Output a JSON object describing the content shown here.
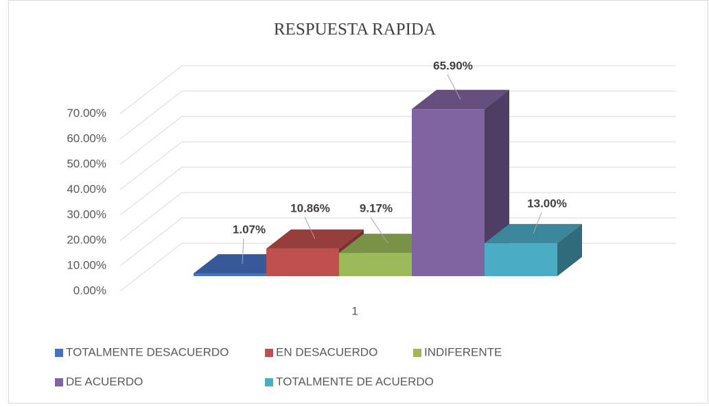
{
  "chart_data": {
    "type": "bar3d",
    "title": "RESPUESTA RAPIDA",
    "categories": [
      "1"
    ],
    "series": [
      {
        "name": "TOTALMENTE DESACUERDO",
        "color": "#4472c4",
        "values": [
          1.07
        ],
        "value_labels": [
          "1.07%"
        ]
      },
      {
        "name": "EN DESACUERDO",
        "color": "#c0504d",
        "values": [
          10.86
        ],
        "value_labels": [
          "10.86%"
        ]
      },
      {
        "name": "INDIFERENTE",
        "color": "#9bbb59",
        "values": [
          9.17
        ],
        "value_labels": [
          "9.17%"
        ]
      },
      {
        "name": "DE ACUERDO",
        "color": "#8064a2",
        "values": [
          65.9
        ],
        "value_labels": [
          "65.90%"
        ]
      },
      {
        "name": "TOTALMENTE DE ACUERDO",
        "color": "#4bacc6",
        "values": [
          13.0
        ],
        "value_labels": [
          "13.00%"
        ]
      }
    ],
    "ylim": [
      0,
      70
    ],
    "yticks": [
      {
        "value": 0,
        "label": "0.00%"
      },
      {
        "value": 10,
        "label": "10.00%"
      },
      {
        "value": 20,
        "label": "20.00%"
      },
      {
        "value": 30,
        "label": "30.00%"
      },
      {
        "value": 40,
        "label": "40.00%"
      },
      {
        "value": 50,
        "label": "50.00%"
      },
      {
        "value": 60,
        "label": "60.00%"
      },
      {
        "value": 70,
        "label": "70.00%"
      }
    ],
    "grid": true,
    "legend": "bottom"
  }
}
